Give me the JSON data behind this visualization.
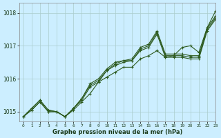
{
  "title": "Graphe pression niveau de la mer (hPa)",
  "bg_color": "#cceeff",
  "grid_color": "#aacccc",
  "line_color": "#2d5a1e",
  "xlim": [
    -0.5,
    23
  ],
  "ylim": [
    1014.7,
    1018.3
  ],
  "yticks": [
    1015,
    1016,
    1017,
    1018
  ],
  "xticks": [
    0,
    1,
    2,
    3,
    4,
    5,
    6,
    7,
    8,
    9,
    10,
    11,
    12,
    13,
    14,
    15,
    16,
    17,
    18,
    19,
    20,
    21,
    22,
    23
  ],
  "series": [
    {
      "x": [
        0,
        1,
        2,
        3,
        4,
        5,
        6,
        7,
        8,
        9,
        10,
        11,
        12,
        13,
        14,
        15,
        16,
        17,
        18,
        19,
        20,
        21,
        22,
        23
      ],
      "y": [
        1014.85,
        1015.05,
        1015.3,
        1015.0,
        1015.0,
        1014.85,
        1015.1,
        1015.35,
        1015.75,
        1015.9,
        1016.25,
        1016.4,
        1016.5,
        1016.55,
        1016.85,
        1016.95,
        1017.35,
        1016.65,
        1016.65,
        1016.65,
        1016.6,
        1016.6,
        1017.45,
        1017.8
      ]
    },
    {
      "x": [
        0,
        1,
        2,
        3,
        4,
        5,
        6,
        7,
        8,
        9,
        10,
        11,
        12,
        13,
        14,
        15,
        16,
        17,
        18,
        19,
        20,
        21,
        22,
        23
      ],
      "y": [
        1014.85,
        1015.05,
        1015.3,
        1015.0,
        1015.0,
        1014.85,
        1015.1,
        1015.4,
        1015.8,
        1015.95,
        1016.25,
        1016.45,
        1016.55,
        1016.55,
        1016.9,
        1017.0,
        1017.4,
        1016.7,
        1016.7,
        1016.7,
        1016.65,
        1016.65,
        1017.5,
        1017.85
      ]
    },
    {
      "x": [
        0,
        1,
        2,
        3,
        4,
        5,
        6,
        7,
        8,
        9,
        10,
        11,
        12,
        13,
        14,
        15,
        16,
        17,
        18,
        19,
        20,
        21,
        22,
        23
      ],
      "y": [
        1014.85,
        1015.1,
        1015.35,
        1015.05,
        1015.0,
        1014.85,
        1015.1,
        1015.4,
        1015.85,
        1016.0,
        1016.3,
        1016.5,
        1016.55,
        1016.6,
        1016.95,
        1017.05,
        1017.45,
        1016.75,
        1016.75,
        1016.75,
        1016.7,
        1016.7,
        1017.55,
        1017.9
      ]
    },
    {
      "x": [
        0,
        1,
        2,
        3,
        4,
        5,
        6,
        7,
        8,
        9,
        10,
        11,
        12,
        13,
        14,
        15,
        16,
        17,
        18,
        19,
        20,
        21,
        22,
        23
      ],
      "y": [
        1014.85,
        1015.1,
        1015.35,
        1015.05,
        1015.0,
        1014.85,
        1015.05,
        1015.3,
        1015.55,
        1015.9,
        1016.05,
        1016.2,
        1016.35,
        1016.35,
        1016.6,
        1016.7,
        1016.85,
        1016.65,
        1016.7,
        1016.95,
        1017.0,
        1016.8,
        1017.55,
        1018.05
      ]
    }
  ]
}
